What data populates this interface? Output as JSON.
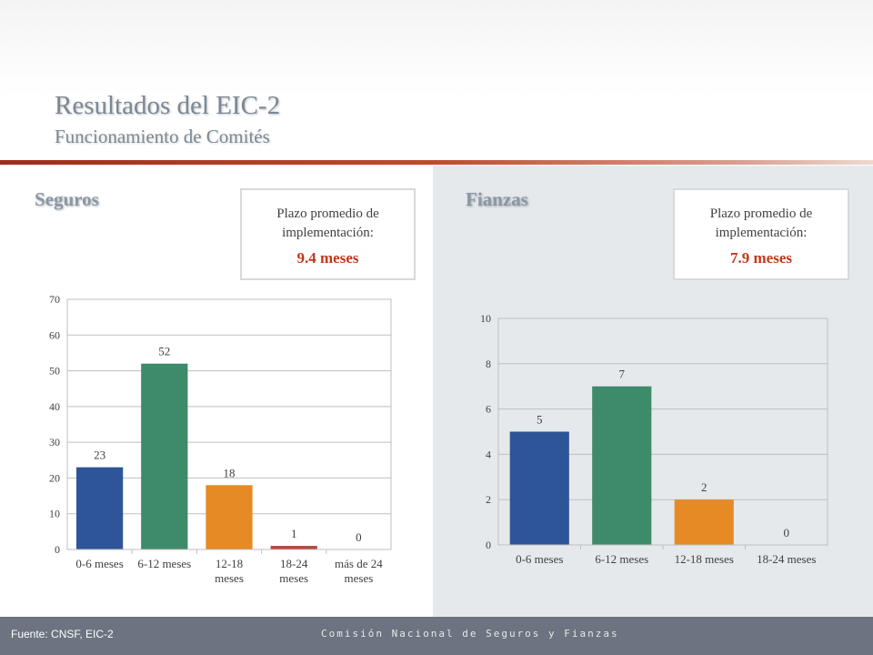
{
  "header": {
    "title": "Resultados del EIC-2",
    "subtitle": "Funcionamiento de Comités"
  },
  "panels": {
    "left": {
      "heading": "Seguros",
      "info_label": "Plazo promedio de implementación:",
      "info_value": "9.4 meses"
    },
    "right": {
      "heading": "Fianzas",
      "info_label": "Plazo promedio de implementación:",
      "info_value": "7.9 meses"
    }
  },
  "footer": {
    "source": "Fuente: CNSF, EIC-2",
    "organization": "Comisión Nacional de Seguros y Fianzas"
  },
  "colors": {
    "accent_red": "#c0391b",
    "bar_colors": [
      "#2e5597",
      "#3d8b6a",
      "#e68a26",
      "#b5493c",
      "#7f7f7f"
    ]
  },
  "chart_data": [
    {
      "type": "bar",
      "categories": [
        "0-6 meses",
        "6-12 meses",
        "12-18 meses",
        "18-24 meses",
        "más de 24 meses"
      ],
      "values": [
        23,
        52,
        18,
        1,
        0
      ],
      "ylim": [
        0,
        70
      ],
      "yticks": [
        0,
        10,
        20,
        30,
        40,
        50,
        60,
        70
      ],
      "grid": true,
      "legend": "none"
    },
    {
      "type": "bar",
      "categories": [
        "0-6 meses",
        "6-12 meses",
        "12-18 meses",
        "18-24 meses"
      ],
      "values": [
        5,
        7,
        2,
        0
      ],
      "ylim": [
        0,
        10
      ],
      "yticks": [
        0,
        2,
        4,
        6,
        8,
        10
      ],
      "grid": true,
      "legend": "none"
    }
  ]
}
